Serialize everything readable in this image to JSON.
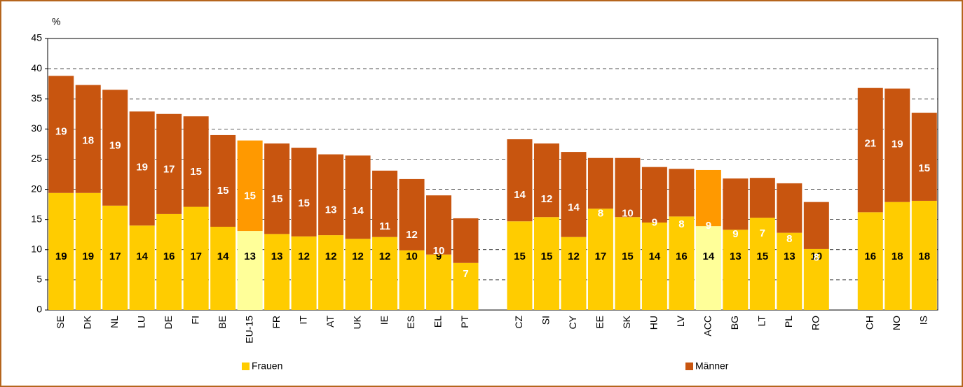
{
  "chart_data": {
    "type": "stacked_bar",
    "y_label": "%",
    "categories": [
      "SE",
      "DK",
      "NL",
      "LU",
      "DE",
      "FI",
      "BE",
      "EU-15",
      "FR",
      "IT",
      "AT",
      "UK",
      "IE",
      "ES",
      "EL",
      "PT",
      null,
      "CZ",
      "SI",
      "CY",
      "EE",
      "SK",
      "HU",
      "LV",
      "ACC",
      "BG",
      "LT",
      "PL",
      "RO",
      null,
      "CH",
      "NO",
      "IS"
    ],
    "series": [
      {
        "name": "Frauen",
        "color": "#ffcc00",
        "label_color": "#000000",
        "values": [
          19.4,
          19.4,
          17.3,
          14.0,
          15.9,
          17.1,
          13.8,
          13.1,
          12.6,
          12.2,
          12.4,
          11.8,
          12.1,
          9.9,
          9.2,
          7.8,
          null,
          14.7,
          15.4,
          12.1,
          16.8,
          15.4,
          14.5,
          15.5,
          13.9,
          13.3,
          15.3,
          12.8,
          10.1,
          null,
          16.2,
          17.9,
          18.1
        ],
        "value_labels": [
          "19",
          "19",
          "17",
          "14",
          "16",
          "17",
          "14",
          "13",
          "13",
          "12",
          "12",
          "12",
          "12",
          "10",
          "9",
          "8",
          null,
          "15",
          "15",
          "12",
          "17",
          "15",
          "14",
          "16",
          "14",
          "13",
          "15",
          "13",
          "10",
          null,
          "16",
          "18",
          "18"
        ],
        "colors": [
          "#ffcc00",
          "#ffcc00",
          "#ffcc00",
          "#ffcc00",
          "#ffcc00",
          "#ffcc00",
          "#ffcc00",
          "#ffff99",
          "#ffcc00",
          "#ffcc00",
          "#ffcc00",
          "#ffcc00",
          "#ffcc00",
          "#ffcc00",
          "#ffcc00",
          "#ffcc00",
          null,
          "#ffcc00",
          "#ffcc00",
          "#ffcc00",
          "#ffcc00",
          "#ffcc00",
          "#ffcc00",
          "#ffcc00",
          "#ffff99",
          "#ffcc00",
          "#ffcc00",
          "#ffcc00",
          "#ffcc00",
          null,
          "#ffcc00",
          "#ffcc00",
          "#ffcc00"
        ]
      },
      {
        "name": "Männer",
        "color": "#c8550f",
        "label_color": "#ffffff",
        "values": [
          19.4,
          17.9,
          19.2,
          18.9,
          16.6,
          15.0,
          15.2,
          15.0,
          15.0,
          14.7,
          13.4,
          13.8,
          11.0,
          11.8,
          9.8,
          7.4,
          null,
          13.6,
          12.2,
          14.1,
          8.4,
          9.8,
          9.2,
          7.9,
          9.3,
          8.5,
          6.6,
          8.2,
          7.8,
          null,
          20.6,
          18.8,
          14.6
        ],
        "value_labels": [
          "19",
          "18",
          "19",
          "19",
          "17",
          "15",
          "15",
          "15",
          "15",
          "15",
          "13",
          "14",
          "11",
          "12",
          "10",
          "7",
          null,
          "14",
          "12",
          "14",
          "8",
          "10",
          "9",
          "8",
          "9",
          "9",
          "7",
          "8",
          "8",
          null,
          "21",
          "19",
          "15"
        ],
        "colors": [
          "#c8550f",
          "#c8550f",
          "#c8550f",
          "#c8550f",
          "#c8550f",
          "#c8550f",
          "#c8550f",
          "#ff9900",
          "#c8550f",
          "#c8550f",
          "#c8550f",
          "#c8550f",
          "#c8550f",
          "#c8550f",
          "#c8550f",
          "#c8550f",
          null,
          "#c8550f",
          "#c8550f",
          "#c8550f",
          "#c8550f",
          "#c8550f",
          "#c8550f",
          "#c8550f",
          "#ff9900",
          "#c8550f",
          "#c8550f",
          "#c8550f",
          "#c8550f",
          null,
          "#c8550f",
          "#c8550f",
          "#c8550f"
        ]
      }
    ],
    "ylim": [
      0,
      45
    ],
    "yticks": [
      0,
      5,
      10,
      15,
      20,
      25,
      30,
      35,
      40,
      45
    ],
    "grid": true,
    "legend": "bottom"
  }
}
